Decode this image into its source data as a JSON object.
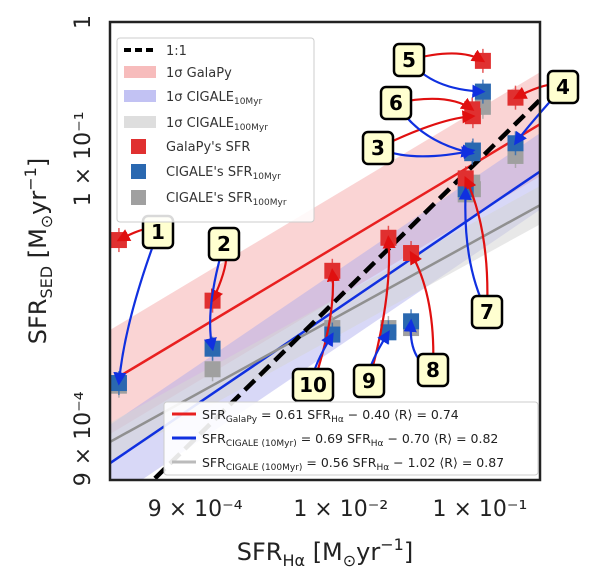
{
  "chart_data": {
    "type": "scatter",
    "xlabel": "SFR_Hα [M⊙yr⁻¹]",
    "ylabel": "SFR_SED [M⊙yr⁻¹]",
    "xlim": [
      0.00022,
      0.27
    ],
    "ylim": [
      0.00045,
      1.0
    ],
    "x_scale": "log",
    "y_scale": "log",
    "x_ticks": [
      {
        "value": 0.0009,
        "label": "9 × 10⁻⁴"
      },
      {
        "value": 0.01,
        "label": "1 × 10⁻²"
      },
      {
        "value": 0.1,
        "label": "1 × 10⁻¹"
      }
    ],
    "y_ticks": [
      {
        "value": 0.0009,
        "label": "9 × 10⁻⁴"
      },
      {
        "value": 0.1,
        "label": "1 × 10⁻¹"
      },
      {
        "value": 1.0,
        "label": "1"
      }
    ],
    "legend_position": "top-left",
    "legend": [
      {
        "label": "1:1",
        "kind": "line",
        "color": "#000000"
      },
      {
        "label": "1σ GalaPy",
        "kind": "band",
        "color": "#f4a0a0"
      },
      {
        "label": "1σ CIGALE₁₀Myr",
        "kind": "band",
        "color": "#a8a8ee"
      },
      {
        "label": "1σ CIGALE₁₀₀Myr",
        "kind": "band",
        "color": "#d6d6d6"
      },
      {
        "label": "GalaPy's SFR",
        "kind": "square",
        "color": "#e03030"
      },
      {
        "label": "CIGALE's SFR₁₀Myr",
        "kind": "square",
        "color": "#2a68b0"
      },
      {
        "label": "CIGALE's SFR₁₀₀Myr",
        "kind": "square",
        "color": "#a0a0a0"
      }
    ],
    "fits": [
      {
        "name": "GalaPy",
        "slope": 0.61,
        "intercept": -0.4,
        "color": "#e82020",
        "text": "SFR_GalaPy = 0.61 SFR_Hα − 0.40   ⟨R⟩ = 0.74"
      },
      {
        "name": "CIGALE (10Myr)",
        "slope": 0.69,
        "intercept": -0.7,
        "color": "#1030e0",
        "text": "SFR_CIGALE (10Myr) = 0.69 SFR_Hα − 0.70   ⟨R⟩ = 0.82"
      },
      {
        "name": "CIGALE (100Myr)",
        "slope": 0.56,
        "intercept": -1.02,
        "color": "#909090",
        "text": "SFR_CIGALE (100Myr) = 0.56 SFR_Hα − 1.02   ⟨R⟩ = 0.87"
      }
    ],
    "series": [
      {
        "name": "GalaPy's SFR",
        "color": "#e03030",
        "points": [
          {
            "id": 1,
            "x": 0.000255,
            "y": 0.0255
          },
          {
            "id": 2,
            "x": 0.0012,
            "y": 0.0092
          },
          {
            "id": 3,
            "x": 0.089,
            "y": 0.205
          },
          {
            "id": 4,
            "x": 0.18,
            "y": 0.28
          },
          {
            "id": 5,
            "x": 0.105,
            "y": 0.52
          },
          {
            "id": 6,
            "x": 0.088,
            "y": 0.23
          },
          {
            "id": 7,
            "x": 0.079,
            "y": 0.072
          },
          {
            "id": 8,
            "x": 0.032,
            "y": 0.0205
          },
          {
            "id": 9,
            "x": 0.022,
            "y": 0.0265
          },
          {
            "id": 10,
            "x": 0.0087,
            "y": 0.0152
          }
        ]
      },
      {
        "name": "CIGALE's SFR₁₀Myr",
        "color": "#2a68b0",
        "points": [
          {
            "id": 1,
            "x": 0.000255,
            "y": 0.0023
          },
          {
            "id": 2,
            "x": 0.0012,
            "y": 0.0041
          },
          {
            "id": 3,
            "x": 0.089,
            "y": 0.115
          },
          {
            "id": 4,
            "x": 0.18,
            "y": 0.13
          },
          {
            "id": 5,
            "x": 0.105,
            "y": 0.31
          },
          {
            "id": 6,
            "x": 0.088,
            "y": 0.11
          },
          {
            "id": 7,
            "x": 0.079,
            "y": 0.06
          },
          {
            "id": 8,
            "x": 0.032,
            "y": 0.0065
          },
          {
            "id": 9,
            "x": 0.022,
            "y": 0.0054
          },
          {
            "id": 10,
            "x": 0.0087,
            "y": 0.0052
          }
        ]
      },
      {
        "name": "CIGALE's SFR₁₀₀Myr",
        "color": "#a0a0a0",
        "points": [
          {
            "id": 1,
            "x": 0.000255,
            "y": 0.0022
          },
          {
            "id": 2,
            "x": 0.0012,
            "y": 0.0029
          },
          {
            "id": 3,
            "x": 0.089,
            "y": 0.06
          },
          {
            "id": 4,
            "x": 0.18,
            "y": 0.105
          },
          {
            "id": 5,
            "x": 0.105,
            "y": 0.24
          },
          {
            "id": 6,
            "x": 0.088,
            "y": 0.067
          },
          {
            "id": 7,
            "x": 0.079,
            "y": 0.055
          },
          {
            "id": 8,
            "x": 0.032,
            "y": 0.0058
          },
          {
            "id": 9,
            "x": 0.022,
            "y": 0.0058
          },
          {
            "id": 10,
            "x": 0.0087,
            "y": 0.0058
          }
        ]
      }
    ],
    "labels": [
      {
        "id": "1",
        "text": "1"
      },
      {
        "id": "2",
        "text": "2"
      },
      {
        "id": "3",
        "text": "3"
      },
      {
        "id": "4",
        "text": "4"
      },
      {
        "id": "5",
        "text": "5"
      },
      {
        "id": "6",
        "text": "6"
      },
      {
        "id": "7",
        "text": "7"
      },
      {
        "id": "8",
        "text": "8"
      },
      {
        "id": "9",
        "text": "9"
      },
      {
        "id": "10",
        "text": "10"
      }
    ],
    "colors": {
      "red_arrow": "#e01010",
      "blue_arrow": "#1030e0",
      "callout_fill": "#ffffd0",
      "one_to_one": "#000000"
    }
  }
}
